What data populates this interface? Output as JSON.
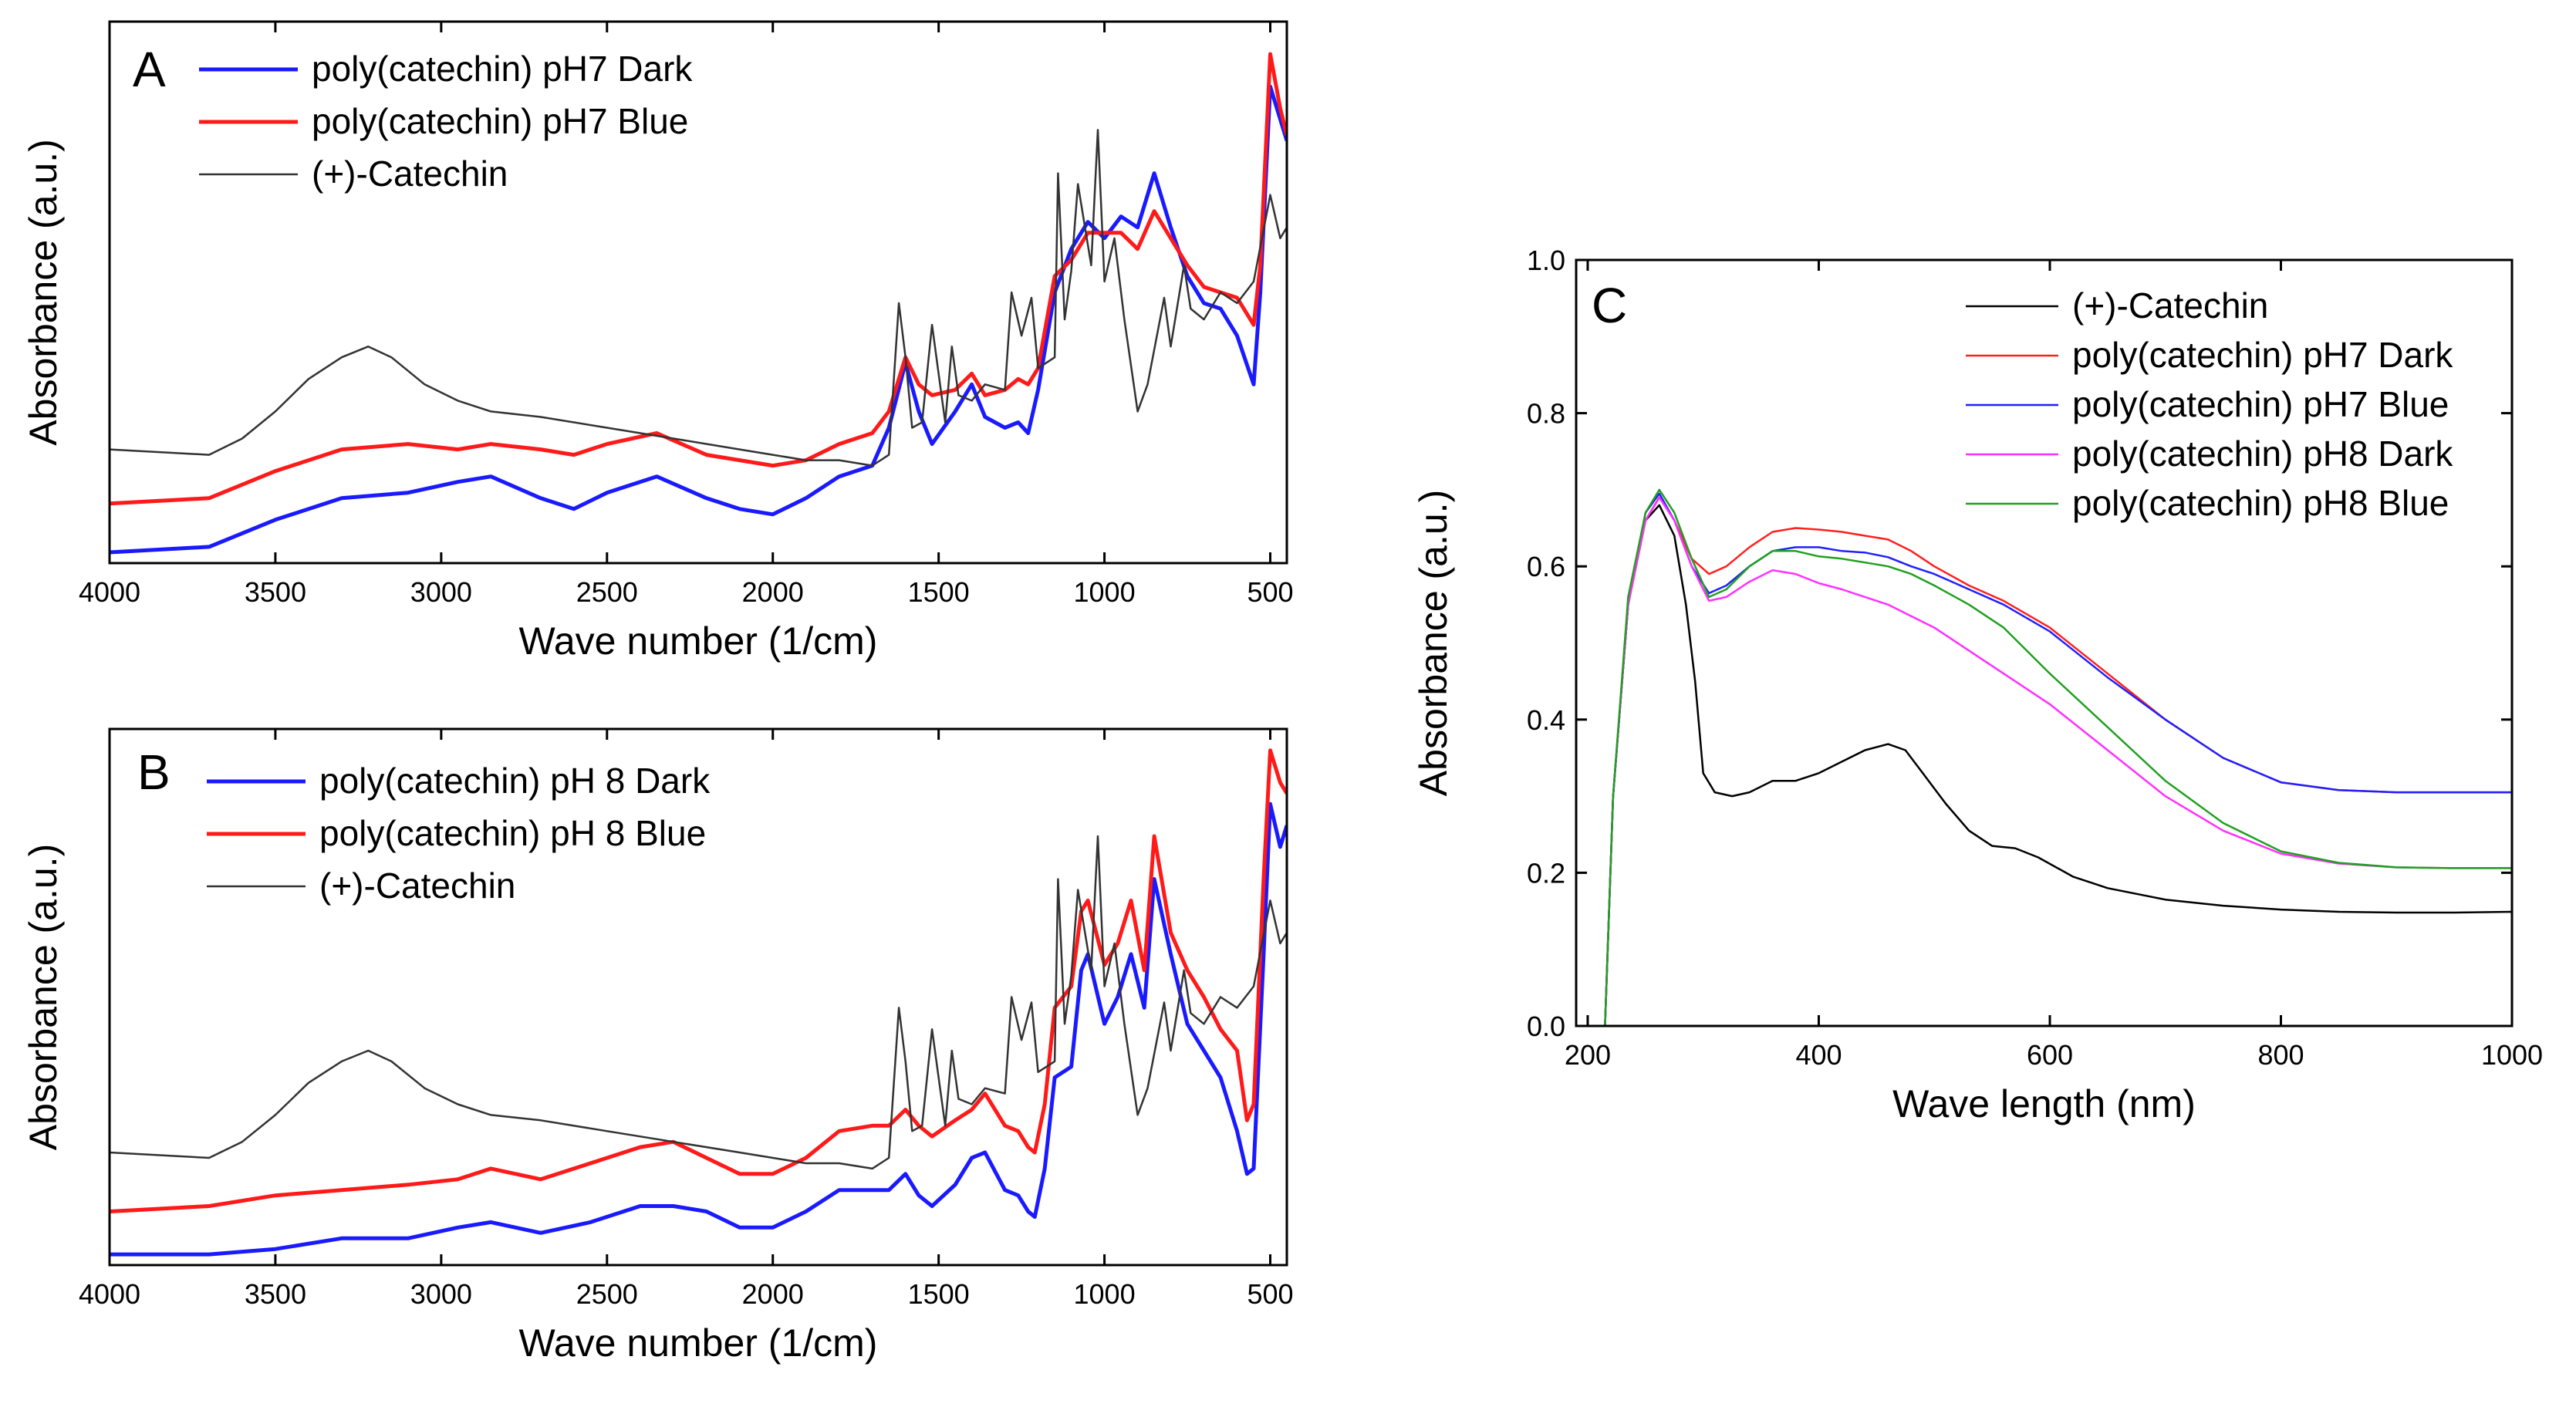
{
  "chart_data": [
    {
      "id": "A",
      "type": "line",
      "panel_label": "A",
      "xlabel": "Wave number (1/cm)",
      "ylabel": "Absorbance (a.u.)",
      "xlim": [
        4000,
        450
      ],
      "x_reversed": true,
      "y_tick_labels": false,
      "ylim": [
        0,
        1
      ],
      "xticks": [
        4000,
        3500,
        3000,
        2500,
        2000,
        1500,
        1000,
        500
      ],
      "legend_position": "top-left",
      "series": [
        {
          "name": "poly(catechin) pH7 Dark",
          "color": "#1a1aff",
          "x": [
            4000,
            3700,
            3500,
            3300,
            3100,
            2950,
            2850,
            2700,
            2600,
            2500,
            2350,
            2200,
            2100,
            2000,
            1900,
            1800,
            1700,
            1650,
            1600,
            1560,
            1520,
            1450,
            1400,
            1360,
            1300,
            1260,
            1230,
            1200,
            1150,
            1100,
            1050,
            1000,
            950,
            900,
            850,
            800,
            750,
            700,
            650,
            600,
            550,
            530,
            500,
            470,
            450
          ],
          "values": [
            0.02,
            0.03,
            0.08,
            0.12,
            0.13,
            0.15,
            0.16,
            0.12,
            0.1,
            0.13,
            0.16,
            0.12,
            0.1,
            0.09,
            0.12,
            0.16,
            0.18,
            0.25,
            0.37,
            0.28,
            0.22,
            0.28,
            0.33,
            0.27,
            0.25,
            0.26,
            0.24,
            0.32,
            0.5,
            0.58,
            0.63,
            0.6,
            0.64,
            0.62,
            0.72,
            0.62,
            0.53,
            0.48,
            0.47,
            0.42,
            0.33,
            0.5,
            0.88,
            0.82,
            0.78
          ]
        },
        {
          "name": "poly(catechin) pH7 Blue",
          "color": "#ff1a1a",
          "x": [
            4000,
            3700,
            3500,
            3300,
            3100,
            2950,
            2850,
            2700,
            2600,
            2500,
            2350,
            2200,
            2100,
            2000,
            1900,
            1800,
            1700,
            1650,
            1600,
            1560,
            1520,
            1450,
            1400,
            1360,
            1300,
            1260,
            1230,
            1200,
            1150,
            1100,
            1050,
            1000,
            950,
            900,
            850,
            800,
            750,
            700,
            650,
            600,
            550,
            530,
            500,
            470,
            450
          ],
          "values": [
            0.11,
            0.12,
            0.17,
            0.21,
            0.22,
            0.21,
            0.22,
            0.21,
            0.2,
            0.22,
            0.24,
            0.2,
            0.19,
            0.18,
            0.19,
            0.22,
            0.24,
            0.28,
            0.38,
            0.33,
            0.31,
            0.32,
            0.35,
            0.31,
            0.32,
            0.34,
            0.33,
            0.36,
            0.53,
            0.56,
            0.61,
            0.61,
            0.61,
            0.58,
            0.65,
            0.6,
            0.55,
            0.51,
            0.5,
            0.49,
            0.44,
            0.55,
            0.94,
            0.84,
            0.79
          ]
        },
        {
          "name": "(+)-Catechin",
          "color": "#333333",
          "x": [
            4000,
            3700,
            3600,
            3500,
            3400,
            3300,
            3220,
            3150,
            3050,
            2950,
            2850,
            2700,
            2500,
            2300,
            2100,
            2000,
            1900,
            1800,
            1700,
            1650,
            1620,
            1600,
            1580,
            1550,
            1520,
            1500,
            1480,
            1460,
            1440,
            1400,
            1360,
            1300,
            1280,
            1250,
            1220,
            1200,
            1150,
            1140,
            1120,
            1100,
            1080,
            1040,
            1020,
            1000,
            970,
            940,
            900,
            870,
            820,
            800,
            760,
            740,
            700,
            650,
            600,
            550,
            500,
            470,
            450
          ],
          "values": [
            0.21,
            0.2,
            0.23,
            0.28,
            0.34,
            0.38,
            0.4,
            0.38,
            0.33,
            0.3,
            0.28,
            0.27,
            0.25,
            0.23,
            0.21,
            0.2,
            0.19,
            0.19,
            0.18,
            0.2,
            0.48,
            0.38,
            0.25,
            0.26,
            0.44,
            0.35,
            0.26,
            0.4,
            0.31,
            0.3,
            0.33,
            0.32,
            0.5,
            0.42,
            0.49,
            0.36,
            0.38,
            0.72,
            0.45,
            0.54,
            0.7,
            0.55,
            0.8,
            0.52,
            0.6,
            0.45,
            0.28,
            0.33,
            0.49,
            0.4,
            0.55,
            0.47,
            0.45,
            0.5,
            0.48,
            0.52,
            0.68,
            0.6,
            0.62
          ]
        }
      ]
    },
    {
      "id": "B",
      "type": "line",
      "panel_label": "B",
      "xlabel": "Wave number (1/cm)",
      "ylabel": "Absorbance (a.u.)",
      "xlim": [
        4000,
        450
      ],
      "x_reversed": true,
      "y_tick_labels": false,
      "ylim": [
        0,
        1
      ],
      "xticks": [
        4000,
        3500,
        3000,
        2500,
        2000,
        1500,
        1000,
        500
      ],
      "legend_position": "top-left",
      "series": [
        {
          "name": "poly(catechin) pH 8 Dark",
          "color": "#1a1aff",
          "x": [
            4000,
            3700,
            3500,
            3300,
            3100,
            2950,
            2850,
            2700,
            2550,
            2400,
            2300,
            2200,
            2100,
            2000,
            1900,
            1800,
            1700,
            1650,
            1600,
            1560,
            1520,
            1450,
            1400,
            1360,
            1300,
            1260,
            1230,
            1210,
            1180,
            1150,
            1100,
            1070,
            1050,
            1000,
            960,
            920,
            880,
            850,
            800,
            750,
            700,
            650,
            600,
            570,
            550,
            520,
            500,
            470,
            450
          ],
          "values": [
            0.02,
            0.02,
            0.03,
            0.05,
            0.05,
            0.07,
            0.08,
            0.06,
            0.08,
            0.11,
            0.11,
            0.1,
            0.07,
            0.07,
            0.1,
            0.14,
            0.14,
            0.14,
            0.17,
            0.13,
            0.11,
            0.15,
            0.2,
            0.21,
            0.14,
            0.13,
            0.1,
            0.09,
            0.18,
            0.35,
            0.37,
            0.55,
            0.58,
            0.45,
            0.5,
            0.58,
            0.48,
            0.72,
            0.58,
            0.45,
            0.4,
            0.35,
            0.25,
            0.17,
            0.18,
            0.58,
            0.86,
            0.78,
            0.82
          ]
        },
        {
          "name": "poly(catechin) pH 8 Blue",
          "color": "#ff1a1a",
          "x": [
            4000,
            3700,
            3500,
            3300,
            3100,
            2950,
            2850,
            2700,
            2550,
            2400,
            2300,
            2200,
            2100,
            2000,
            1900,
            1800,
            1700,
            1650,
            1600,
            1560,
            1520,
            1450,
            1400,
            1360,
            1300,
            1260,
            1230,
            1210,
            1180,
            1150,
            1100,
            1070,
            1050,
            1000,
            960,
            920,
            880,
            850,
            800,
            750,
            700,
            650,
            600,
            570,
            550,
            520,
            500,
            470,
            450
          ],
          "values": [
            0.1,
            0.11,
            0.13,
            0.14,
            0.15,
            0.16,
            0.18,
            0.16,
            0.19,
            0.22,
            0.23,
            0.2,
            0.17,
            0.17,
            0.2,
            0.25,
            0.26,
            0.26,
            0.29,
            0.26,
            0.24,
            0.27,
            0.29,
            0.32,
            0.26,
            0.25,
            0.22,
            0.21,
            0.3,
            0.48,
            0.52,
            0.66,
            0.68,
            0.56,
            0.6,
            0.68,
            0.55,
            0.8,
            0.62,
            0.55,
            0.5,
            0.44,
            0.4,
            0.27,
            0.3,
            0.72,
            0.96,
            0.9,
            0.88
          ]
        },
        {
          "name": "(+)-Catechin",
          "color": "#333333",
          "x": [
            4000,
            3700,
            3600,
            3500,
            3400,
            3300,
            3220,
            3150,
            3050,
            2950,
            2850,
            2700,
            2500,
            2300,
            2100,
            2000,
            1900,
            1800,
            1700,
            1650,
            1620,
            1600,
            1580,
            1550,
            1520,
            1500,
            1480,
            1460,
            1440,
            1400,
            1360,
            1300,
            1280,
            1250,
            1220,
            1200,
            1150,
            1140,
            1120,
            1100,
            1080,
            1040,
            1020,
            1000,
            970,
            940,
            900,
            870,
            820,
            800,
            760,
            740,
            700,
            650,
            600,
            550,
            500,
            470,
            450
          ],
          "values": [
            0.21,
            0.2,
            0.23,
            0.28,
            0.34,
            0.38,
            0.4,
            0.38,
            0.33,
            0.3,
            0.28,
            0.27,
            0.25,
            0.23,
            0.21,
            0.2,
            0.19,
            0.19,
            0.18,
            0.2,
            0.48,
            0.38,
            0.25,
            0.26,
            0.44,
            0.35,
            0.26,
            0.4,
            0.31,
            0.3,
            0.33,
            0.32,
            0.5,
            0.42,
            0.49,
            0.36,
            0.38,
            0.72,
            0.45,
            0.54,
            0.7,
            0.55,
            0.8,
            0.52,
            0.6,
            0.45,
            0.28,
            0.33,
            0.49,
            0.4,
            0.55,
            0.47,
            0.45,
            0.5,
            0.48,
            0.52,
            0.68,
            0.6,
            0.62
          ]
        }
      ]
    },
    {
      "id": "C",
      "type": "line",
      "panel_label": "C",
      "xlabel": "Wave length (nm)",
      "ylabel": "Absorbance (a.u.)",
      "xlim": [
        190,
        1000
      ],
      "ylim": [
        0,
        1
      ],
      "xticks": [
        200,
        400,
        600,
        800,
        1000
      ],
      "yticks": [
        0.0,
        0.2,
        0.4,
        0.6,
        0.8,
        1.0
      ],
      "ytick_labels": [
        "0.0",
        "0.2",
        "0.4",
        "0.6",
        "0.8",
        "1.0"
      ],
      "legend_position": "top-right",
      "series": [
        {
          "name": "(+)-Catechin",
          "color": "#000000",
          "x": [
            215,
            222,
            235,
            250,
            262,
            275,
            285,
            293,
            300,
            310,
            325,
            340,
            360,
            380,
            400,
            420,
            440,
            460,
            475,
            490,
            510,
            530,
            550,
            570,
            590,
            620,
            650,
            700,
            750,
            800,
            850,
            900,
            950,
            1000
          ],
          "values": [
            0.0,
            0.3,
            0.55,
            0.66,
            0.68,
            0.64,
            0.55,
            0.45,
            0.33,
            0.305,
            0.3,
            0.305,
            0.32,
            0.32,
            0.33,
            0.345,
            0.36,
            0.368,
            0.36,
            0.33,
            0.29,
            0.255,
            0.235,
            0.232,
            0.22,
            0.195,
            0.18,
            0.165,
            0.157,
            0.152,
            0.149,
            0.148,
            0.148,
            0.149
          ]
        },
        {
          "name": "poly(catechin) pH7 Dark",
          "color": "#ff2020",
          "x": [
            215,
            222,
            235,
            250,
            262,
            275,
            290,
            305,
            320,
            340,
            360,
            380,
            400,
            420,
            440,
            460,
            480,
            500,
            530,
            560,
            600,
            650,
            700,
            750,
            800,
            850,
            900,
            950,
            1000
          ],
          "values": [
            0.0,
            0.3,
            0.55,
            0.66,
            0.69,
            0.66,
            0.61,
            0.59,
            0.6,
            0.625,
            0.645,
            0.65,
            0.648,
            0.645,
            0.64,
            0.635,
            0.62,
            0.6,
            0.575,
            0.555,
            0.52,
            0.46,
            0.4,
            0.35,
            0.318,
            0.308,
            0.305,
            0.305,
            0.305
          ]
        },
        {
          "name": "poly(catechin) pH7 Blue",
          "color": "#2020ff",
          "x": [
            215,
            222,
            235,
            250,
            262,
            275,
            290,
            305,
            320,
            340,
            360,
            380,
            400,
            420,
            440,
            460,
            480,
            500,
            530,
            560,
            600,
            650,
            700,
            750,
            800,
            850,
            900,
            950,
            1000
          ],
          "values": [
            0.0,
            0.3,
            0.55,
            0.67,
            0.695,
            0.66,
            0.6,
            0.565,
            0.575,
            0.6,
            0.62,
            0.625,
            0.625,
            0.62,
            0.618,
            0.612,
            0.6,
            0.59,
            0.57,
            0.55,
            0.515,
            0.455,
            0.4,
            0.35,
            0.318,
            0.308,
            0.305,
            0.305,
            0.305
          ]
        },
        {
          "name": "poly(catechin) pH8 Dark",
          "color": "#ff30ff",
          "x": [
            215,
            222,
            235,
            250,
            262,
            275,
            290,
            305,
            320,
            340,
            360,
            380,
            400,
            420,
            440,
            460,
            480,
            500,
            530,
            560,
            600,
            650,
            700,
            750,
            800,
            850,
            900,
            950,
            1000
          ],
          "values": [
            0.0,
            0.3,
            0.55,
            0.66,
            0.69,
            0.66,
            0.6,
            0.555,
            0.56,
            0.58,
            0.595,
            0.59,
            0.578,
            0.57,
            0.56,
            0.55,
            0.535,
            0.52,
            0.49,
            0.46,
            0.42,
            0.36,
            0.3,
            0.255,
            0.225,
            0.212,
            0.207,
            0.206,
            0.206
          ]
        },
        {
          "name": "poly(catechin) pH8 Blue",
          "color": "#20a020",
          "x": [
            215,
            222,
            235,
            250,
            262,
            275,
            290,
            305,
            320,
            340,
            360,
            380,
            400,
            420,
            440,
            460,
            480,
            500,
            530,
            560,
            600,
            650,
            700,
            750,
            800,
            850,
            900,
            950,
            1000
          ],
          "values": [
            0.0,
            0.3,
            0.56,
            0.67,
            0.7,
            0.67,
            0.61,
            0.56,
            0.57,
            0.6,
            0.62,
            0.62,
            0.613,
            0.61,
            0.605,
            0.6,
            0.59,
            0.575,
            0.55,
            0.52,
            0.46,
            0.39,
            0.32,
            0.265,
            0.228,
            0.213,
            0.207,
            0.206,
            0.206
          ]
        }
      ]
    }
  ]
}
